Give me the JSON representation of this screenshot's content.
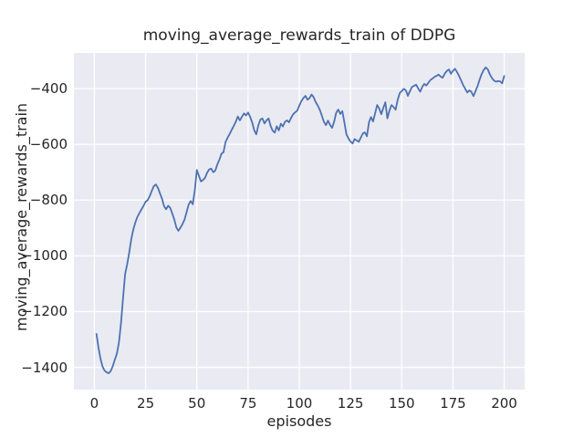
{
  "figure": {
    "background": "#ffffff",
    "plot_background": "#eaeaf2",
    "grid_color": "#ffffff",
    "text_color": "#262626"
  },
  "chart_data": {
    "type": "line",
    "title": "moving_average_rewards_train of DDPG",
    "xlabel": "episodes",
    "ylabel": "moving_average_rewards_train",
    "grid": true,
    "legend_position": "none",
    "xlim": [
      -10,
      210
    ],
    "ylim": [
      -1480,
      -272
    ],
    "xticks": [
      0,
      25,
      50,
      75,
      100,
      125,
      150,
      175,
      200
    ],
    "yticks": [
      -400,
      -600,
      -800,
      -1000,
      -1200,
      -1400
    ],
    "series": [
      {
        "name": "moving_average_rewards_train",
        "color": "#4c72b0",
        "line_width": 1.8,
        "x_start": 1,
        "x_step": 1,
        "values": [
          -1280,
          -1330,
          -1370,
          -1398,
          -1412,
          -1418,
          -1421,
          -1413,
          -1395,
          -1372,
          -1350,
          -1310,
          -1240,
          -1150,
          -1065,
          -1030,
          -988,
          -940,
          -905,
          -880,
          -860,
          -846,
          -833,
          -820,
          -806,
          -800,
          -786,
          -767,
          -750,
          -744,
          -756,
          -776,
          -795,
          -822,
          -833,
          -820,
          -828,
          -848,
          -870,
          -898,
          -910,
          -899,
          -886,
          -870,
          -843,
          -816,
          -803,
          -815,
          -765,
          -692,
          -713,
          -733,
          -728,
          -720,
          -702,
          -690,
          -687,
          -700,
          -694,
          -672,
          -655,
          -634,
          -628,
          -592,
          -576,
          -563,
          -548,
          -534,
          -519,
          -500,
          -514,
          -501,
          -489,
          -496,
          -486,
          -501,
          -521,
          -549,
          -564,
          -532,
          -511,
          -507,
          -525,
          -514,
          -507,
          -534,
          -551,
          -558,
          -535,
          -550,
          -526,
          -536,
          -519,
          -514,
          -521,
          -505,
          -492,
          -485,
          -479,
          -461,
          -445,
          -434,
          -426,
          -440,
          -434,
          -421,
          -431,
          -448,
          -461,
          -476,
          -497,
          -519,
          -531,
          -515,
          -530,
          -541,
          -519,
          -487,
          -475,
          -491,
          -481,
          -521,
          -564,
          -579,
          -590,
          -597,
          -581,
          -586,
          -591,
          -576,
          -561,
          -557,
          -571,
          -521,
          -502,
          -518,
          -489,
          -459,
          -471,
          -492,
          -469,
          -449,
          -507,
          -479,
          -459,
          -466,
          -476,
          -441,
          -416,
          -409,
          -401,
          -406,
          -426,
          -409,
          -394,
          -390,
          -386,
          -399,
          -411,
          -394,
          -383,
          -389,
          -379,
          -369,
          -364,
          -358,
          -354,
          -350,
          -357,
          -361,
          -346,
          -337,
          -331,
          -347,
          -336,
          -329,
          -341,
          -355,
          -371,
          -388,
          -401,
          -414,
          -406,
          -412,
          -427,
          -409,
          -391,
          -368,
          -348,
          -333,
          -324,
          -331,
          -349,
          -362,
          -371,
          -375,
          -373,
          -374,
          -381,
          -355
        ]
      }
    ]
  }
}
